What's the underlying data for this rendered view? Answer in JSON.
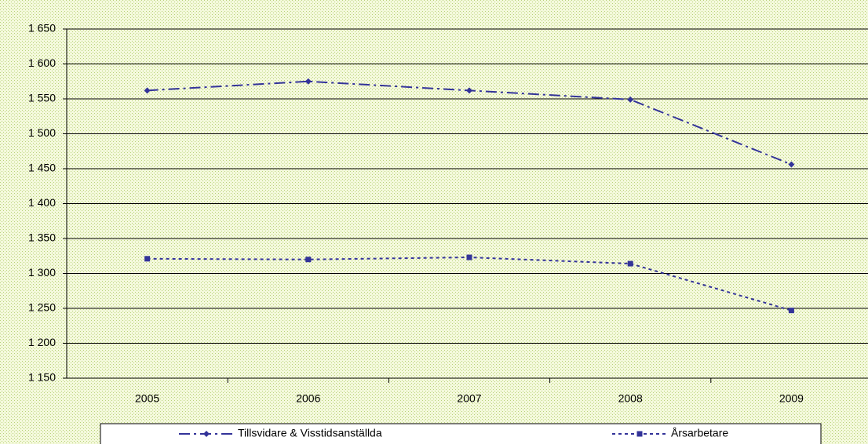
{
  "chart_data": {
    "type": "line",
    "categories": [
      "2005",
      "2006",
      "2007",
      "2008",
      "2009"
    ],
    "series": [
      {
        "name": "Tillsvidare & Visstidsanställda",
        "color": "#333399",
        "values": [
          1562,
          1575,
          1562,
          1549,
          1456
        ]
      },
      {
        "name": "Årsarbetare",
        "color": "#333399",
        "values": [
          1321,
          1320,
          1323,
          1314,
          1247
        ]
      }
    ],
    "ylim": [
      1150,
      1650
    ],
    "yticks": [
      {
        "value": 1150,
        "label": "1 150"
      },
      {
        "value": 1200,
        "label": "1 200"
      },
      {
        "value": 1250,
        "label": "1 250"
      },
      {
        "value": 1300,
        "label": "1 300"
      },
      {
        "value": 1350,
        "label": "1 350"
      },
      {
        "value": 1400,
        "label": "1 400"
      },
      {
        "value": 1450,
        "label": "1 450"
      },
      {
        "value": 1500,
        "label": "1 500"
      },
      {
        "value": 1550,
        "label": "1 550"
      },
      {
        "value": 1600,
        "label": "1 600"
      },
      {
        "value": 1650,
        "label": "1 650"
      }
    ],
    "grid": true
  }
}
